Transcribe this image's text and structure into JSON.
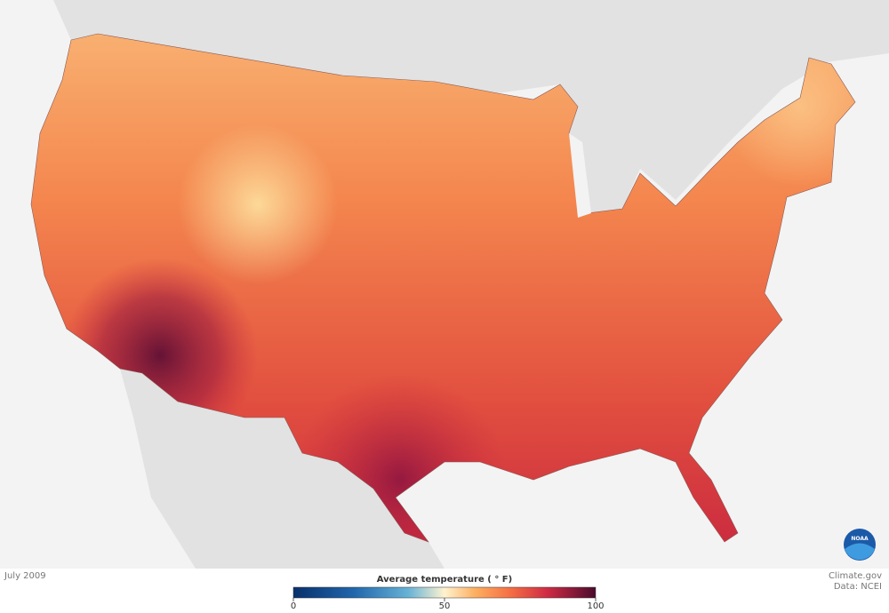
{
  "date": "July 2009",
  "credit": {
    "source": "Climate.gov",
    "data": "Data: NCEI"
  },
  "logo": "NOAA",
  "legend": {
    "title": "Average temperature ( ° F)",
    "range": [
      0,
      100
    ],
    "ticks": [
      0,
      50,
      100
    ]
  }
}
